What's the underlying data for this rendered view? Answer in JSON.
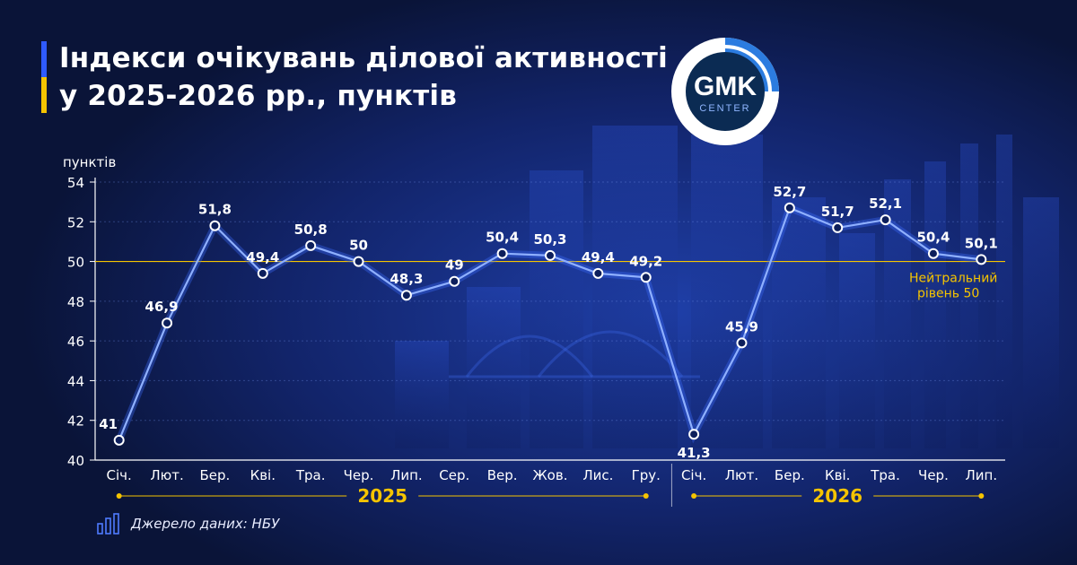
{
  "title_line1": "Індекси очікувань ділової активності",
  "title_line2": "у 2025-2026 рр., пунктів",
  "logo": {
    "main": "GMK",
    "sub": "CENTER"
  },
  "watermark": "center",
  "source": "Джерело даних: НБУ",
  "neutral": {
    "line1": "Нейтральний",
    "line2": "рівень 50",
    "value": 50
  },
  "colors": {
    "line": "#5f8bff",
    "neutral": "#f5c400",
    "axis": "#ffffff",
    "accent": "#2f5bff"
  },
  "chart_data": {
    "type": "line",
    "ylabel": "пунктів",
    "ylim": [
      40,
      54
    ],
    "yticks": [
      40,
      42,
      44,
      46,
      48,
      50,
      52,
      54
    ],
    "grid": true,
    "categories": [
      "Січ.",
      "Лют.",
      "Бер.",
      "Кві.",
      "Тра.",
      "Чер.",
      "Лип.",
      "Сер.",
      "Вер.",
      "Жов.",
      "Лис.",
      "Гру.",
      "Січ.",
      "Лют.",
      "Бер.",
      "Кві.",
      "Тра.",
      "Чер.",
      "Лип."
    ],
    "values": [
      41,
      46.9,
      51.8,
      49.4,
      50.8,
      50,
      48.3,
      49,
      50.4,
      50.3,
      49.4,
      49.2,
      41.3,
      45.9,
      52.7,
      51.7,
      52.1,
      50.4,
      50.1
    ],
    "value_labels": [
      "41",
      "46,9",
      "51,8",
      "49,4",
      "50,8",
      "50",
      "48,3",
      "49",
      "50,4",
      "50,3",
      "49,4",
      "49,2",
      "41,3",
      "45,9",
      "52,7",
      "51,7",
      "52,1",
      "50,4",
      "50,1"
    ],
    "groups": [
      {
        "label": "2025",
        "count": 12
      },
      {
        "label": "2026",
        "count": 7
      }
    ]
  }
}
